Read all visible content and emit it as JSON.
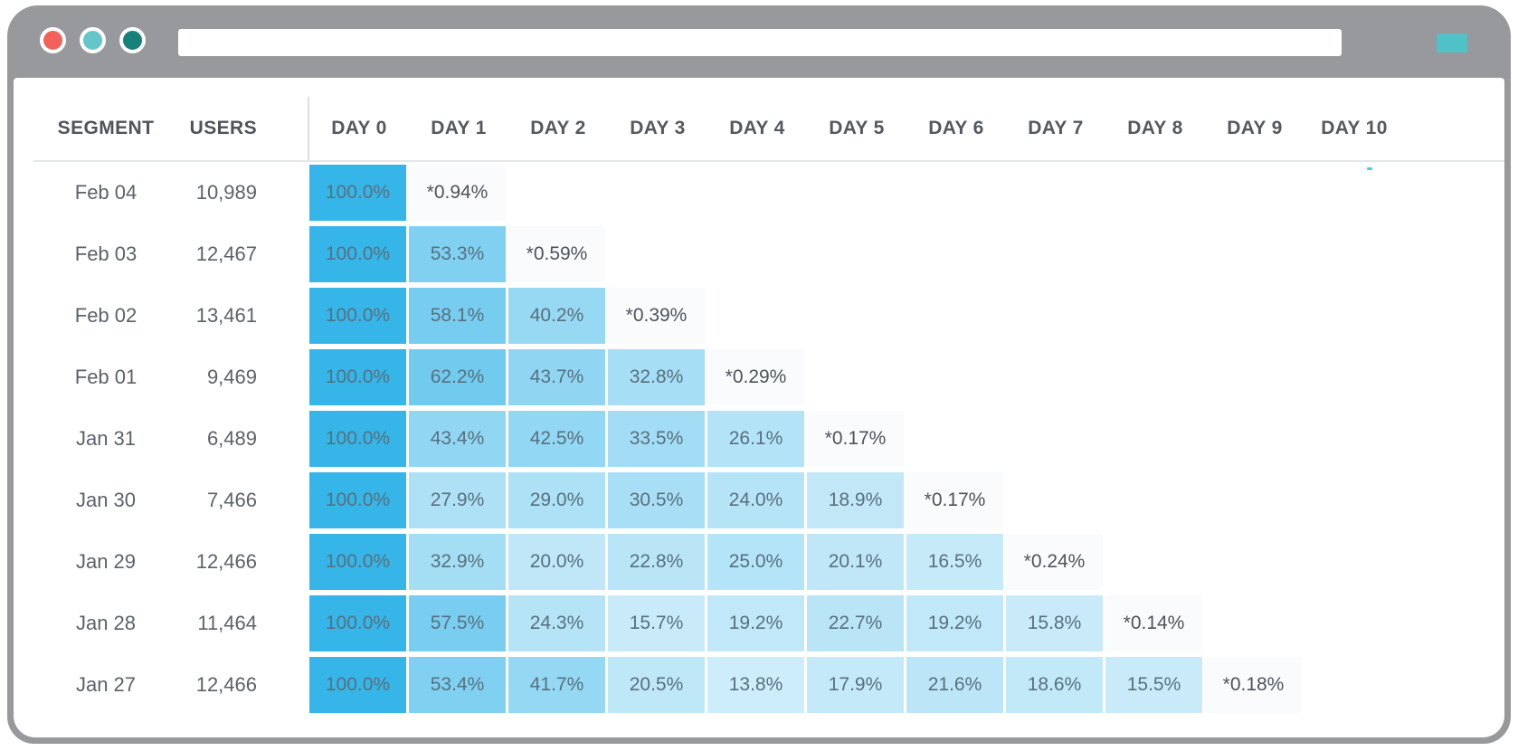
{
  "browser": {
    "traffic_lights": [
      {
        "name": "close",
        "color": "#F2615C"
      },
      {
        "name": "minimize",
        "color": "#65C6C9"
      },
      {
        "name": "zoom",
        "color": "#16807A"
      }
    ],
    "url_bar": {
      "value": ""
    },
    "action_button_color": "#4FC1C7",
    "chrome_color": "#97999D"
  },
  "table": {
    "headers": {
      "segment": "SEGMENT",
      "users": "USERS",
      "days": [
        "DAY 0",
        "DAY 1",
        "DAY 2",
        "DAY 3",
        "DAY 4",
        "DAY 5",
        "DAY 6",
        "DAY 7",
        "DAY 8",
        "DAY 9",
        "DAY 10"
      ]
    },
    "rows": [
      {
        "segment": "Feb 04",
        "users": "10,989",
        "cells": [
          "100.0%",
          "*0.94%"
        ]
      },
      {
        "segment": "Feb 03",
        "users": "12,467",
        "cells": [
          "100.0%",
          "53.3%",
          "*0.59%"
        ]
      },
      {
        "segment": "Feb 02",
        "users": "13,461",
        "cells": [
          "100.0%",
          "58.1%",
          "40.2%",
          "*0.39%"
        ]
      },
      {
        "segment": "Feb 01",
        "users": "9,469",
        "cells": [
          "100.0%",
          "62.2%",
          "43.7%",
          "32.8%",
          "*0.29%"
        ],
        "dotted": [
          1
        ]
      },
      {
        "segment": "Jan 31",
        "users": "6,489",
        "cells": [
          "100.0%",
          "43.4%",
          "42.5%",
          "33.5%",
          "26.1%",
          "*0.17%"
        ]
      },
      {
        "segment": "Jan 30",
        "users": "7,466",
        "cells": [
          "100.0%",
          "27.9%",
          "29.0%",
          "30.5%",
          "24.0%",
          "18.9%",
          "*0.17%"
        ]
      },
      {
        "segment": "Jan 29",
        "users": "12,466",
        "cells": [
          "100.0%",
          "32.9%",
          "20.0%",
          "22.8%",
          "25.0%",
          "20.1%",
          "16.5%",
          "*0.24%"
        ]
      },
      {
        "segment": "Jan 28",
        "users": "11,464",
        "cells": [
          "100.0%",
          "57.5%",
          "24.3%",
          "15.7%",
          "19.2%",
          "22.7%",
          "19.2%",
          "15.8%",
          "*0.14%"
        ]
      },
      {
        "segment": "Jan 27",
        "users": "12,466",
        "cells": [
          "100.0%",
          "53.4%",
          "41.7%",
          "20.5%",
          "13.8%",
          "17.9%",
          "21.6%",
          "18.6%",
          "15.5%",
          "*0.18%"
        ],
        "dotted": [
          4
        ]
      }
    ]
  },
  "colors": {
    "heat_high": "#35B5E8",
    "heat_low": "#FAFDFF",
    "starred_cell_bg": "#F9FBFD",
    "grid_line": "#E4E6E8",
    "header_text": "#4E545B",
    "cell_text": "#58707E"
  }
}
